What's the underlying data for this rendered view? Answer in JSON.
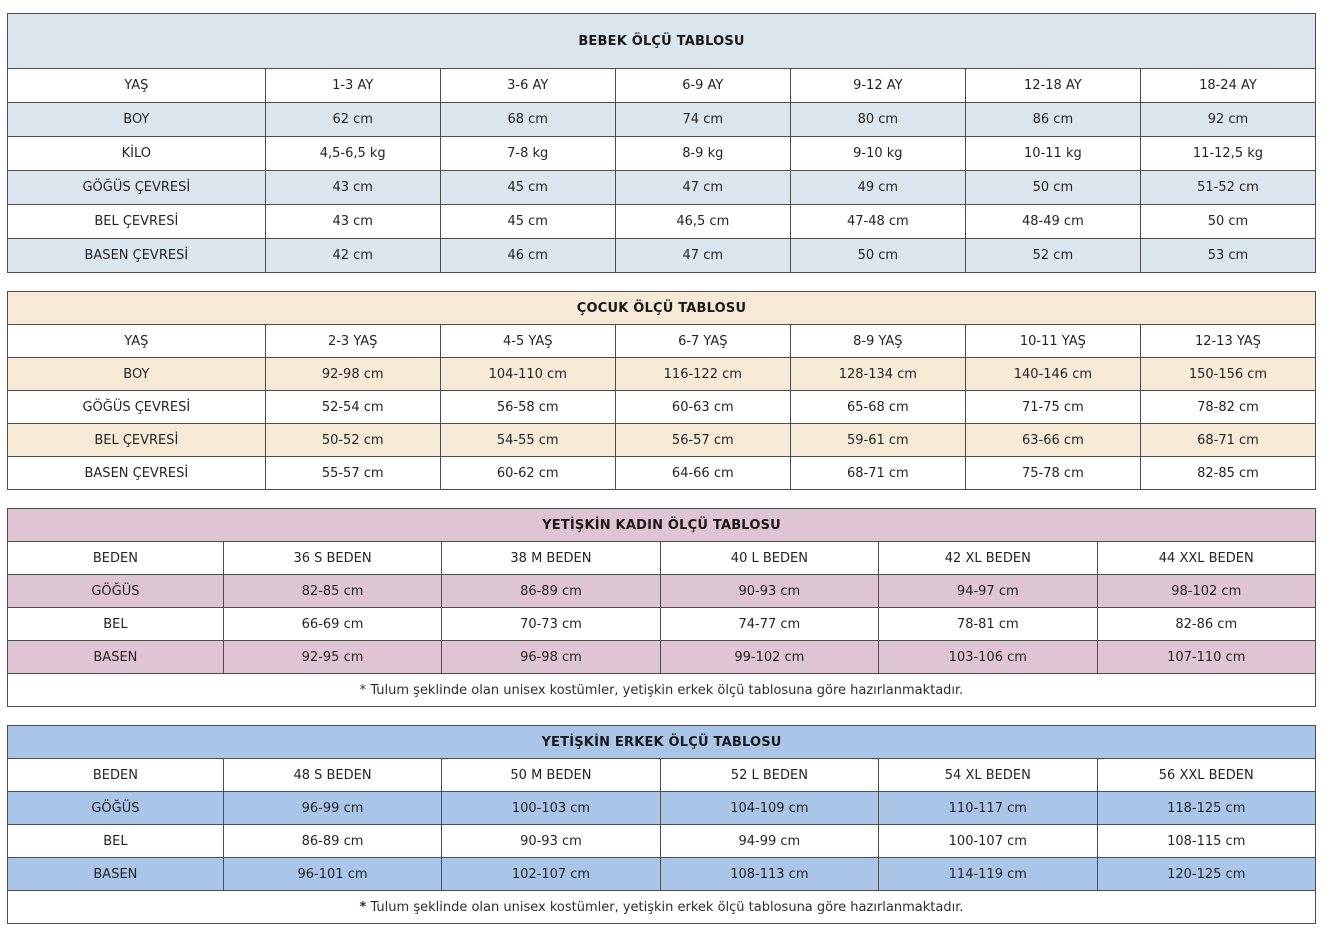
{
  "tables": [
    {
      "name": "bebek-olcu-tablosu",
      "title": "BEBEK ÖLÇÜ TABLOSU",
      "accent_color": "#dbe5ee",
      "rows": [
        [
          "YAŞ",
          "1-3 AY",
          "3-6 AY",
          "6-9 AY",
          "9-12 AY",
          "12-18 AY",
          "18-24 AY"
        ],
        [
          "BOY",
          "62 cm",
          "68 cm",
          "74 cm",
          "80 cm",
          "86 cm",
          "92 cm"
        ],
        [
          "KİLO",
          "4,5-6,5 kg",
          "7-8 kg",
          "8-9 kg",
          "9-10 kg",
          "10-11 kg",
          "11-12,5 kg"
        ],
        [
          "GÖĞÜS ÇEVRESİ",
          "43 cm",
          "45 cm",
          "47 cm",
          "49 cm",
          "50 cm",
          "51-52 cm"
        ],
        [
          "BEL ÇEVRESİ",
          "43 cm",
          "45 cm",
          "46,5 cm",
          "47-48 cm",
          "48-49 cm",
          "50 cm"
        ],
        [
          "BASEN ÇEVRESİ",
          "42 cm",
          "46 cm",
          "47 cm",
          "50 cm",
          "52 cm",
          "53 cm"
        ]
      ]
    },
    {
      "name": "cocuk-olcu-tablosu",
      "title": "ÇOCUK ÖLÇÜ TABLOSU",
      "accent_color": "#f6e9d5",
      "rows": [
        [
          "YAŞ",
          "2-3 YAŞ",
          "4-5 YAŞ",
          "6-7 YAŞ",
          "8-9 YAŞ",
          "10-11 YAŞ",
          "12-13 YAŞ"
        ],
        [
          "BOY",
          "92-98 cm",
          "104-110 cm",
          "116-122 cm",
          "128-134 cm",
          "140-146 cm",
          "150-156 cm"
        ],
        [
          "GÖĞÜS ÇEVRESİ",
          "52-54 cm",
          "56-58 cm",
          "60-63 cm",
          "65-68 cm",
          "71-75 cm",
          "78-82 cm"
        ],
        [
          "BEL ÇEVRESİ",
          "50-52 cm",
          "54-55 cm",
          "56-57 cm",
          "59-61 cm",
          "63-66 cm",
          "68-71 cm"
        ],
        [
          "BASEN ÇEVRESİ",
          "55-57 cm",
          "60-62 cm",
          "64-66 cm",
          "68-71 cm",
          "75-78 cm",
          "82-85 cm"
        ]
      ]
    },
    {
      "name": "yetiskin-kadin-olcu-tablosu",
      "title": "YETİŞKİN KADIN ÖLÇÜ TABLOSU",
      "accent_color": "#dfc4d3",
      "rows": [
        [
          "BEDEN",
          "36 S BEDEN",
          "38 M BEDEN",
          "40 L BEDEN",
          "42 XL BEDEN",
          "44 XXL BEDEN"
        ],
        [
          "GÖĞÜS",
          "82-85 cm",
          "86-89 cm",
          "90-93 cm",
          "94-97 cm",
          "98-102 cm"
        ],
        [
          "BEL",
          "66-69 cm",
          "70-73 cm",
          "74-77 cm",
          "78-81 cm",
          "82-86 cm"
        ],
        [
          "BASEN",
          "92-95 cm",
          "96-98 cm",
          "99-102 cm",
          "103-106 cm",
          "107-110 cm"
        ]
      ],
      "footnote": {
        "marker": "*",
        "text": "Tulum şeklinde olan unisex kostümler, yetişkin erkek ölçü tablosuna göre hazırlanmaktadır."
      }
    },
    {
      "name": "yetiskin-erkek-olcu-tablosu",
      "title": "YETİŞKİN ERKEK ÖLÇÜ TABLOSU",
      "accent_color": "#a9c5e8",
      "rows": [
        [
          "BEDEN",
          "48 S BEDEN",
          "50 M BEDEN",
          "52 L BEDEN",
          "54 XL BEDEN",
          "56 XXL BEDEN"
        ],
        [
          "GÖĞÜS",
          "96-99 cm",
          "100-103 cm",
          "104-109 cm",
          "110-117 cm",
          "118-125 cm"
        ],
        [
          "BEL",
          "86-89 cm",
          "90-93 cm",
          "94-99 cm",
          "100-107 cm",
          "108-115 cm"
        ],
        [
          "BASEN",
          "96-101 cm",
          "102-107 cm",
          "108-113 cm",
          "114-119 cm",
          "120-125 cm"
        ]
      ],
      "footnote": {
        "marker": "*",
        "text": "Tulum şeklinde olan unisex kostümler, yetişkin erkek ölçü  tablosuna göre hazırlanmaktadır."
      }
    }
  ]
}
